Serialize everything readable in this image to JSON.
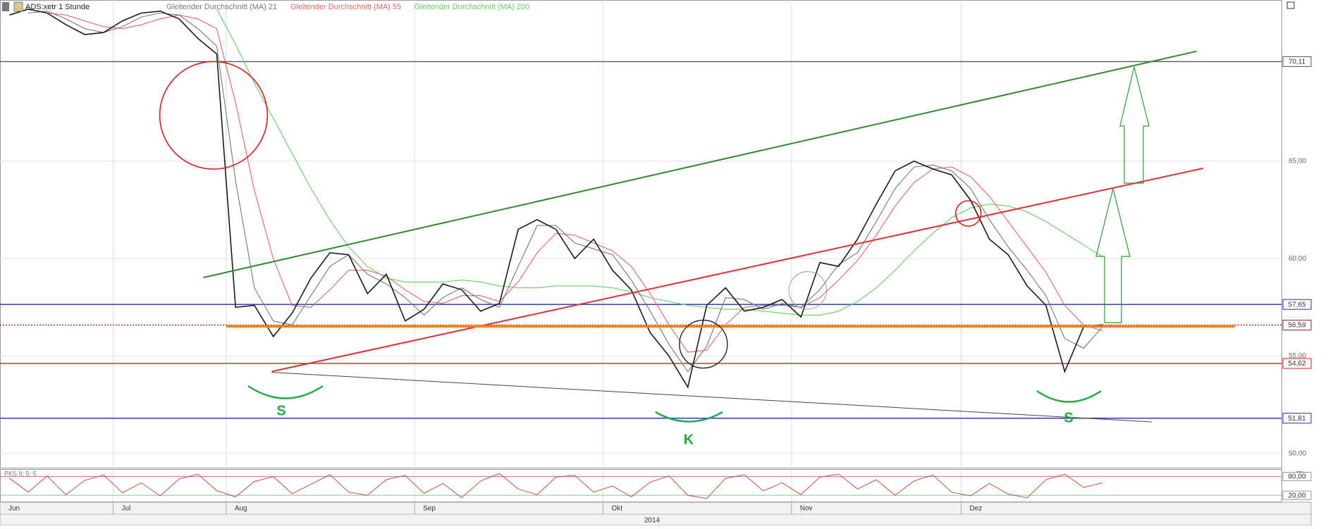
{
  "chart_data": [
    {
      "type": "line",
      "title": "ADS:xetr 1 Stunde",
      "x_label": "2014",
      "categories": [
        "Jun",
        null,
        null,
        null,
        null,
        null,
        "Jul",
        null,
        null,
        null,
        null,
        null,
        "Aug",
        null,
        null,
        null,
        null,
        null,
        null,
        null,
        null,
        null,
        "Sep",
        null,
        null,
        null,
        null,
        null,
        null,
        null,
        null,
        null,
        "Okt",
        null,
        null,
        null,
        null,
        null,
        null,
        null,
        null,
        null,
        "Nov",
        null,
        null,
        null,
        null,
        null,
        null,
        null,
        null,
        "Dez",
        null,
        null,
        null,
        null,
        null,
        null,
        null,
        null,
        null,
        null,
        null,
        null,
        null,
        null,
        null,
        null
      ],
      "series": [
        {
          "name": "ADS:xetr 1 Stunde",
          "color": "#1a1a1a",
          "values": [
            72.5,
            72.8,
            72.6,
            72.0,
            71.5,
            71.6,
            72.2,
            72.6,
            72.7,
            72.3,
            71.3,
            70.5,
            57.5,
            57.6,
            56.0,
            57.2,
            59.0,
            60.3,
            60.2,
            58.2,
            59.2,
            56.8,
            57.4,
            58.7,
            58.4,
            57.3,
            57.7,
            61.5,
            62.0,
            61.5,
            60.0,
            61.0,
            59.4,
            58.4,
            56.2,
            55.0,
            53.4,
            57.6,
            58.5,
            57.3,
            57.5,
            57.9,
            57.0,
            59.8,
            59.6,
            61.0,
            62.8,
            64.5,
            65.0,
            64.6,
            64.3,
            63.0,
            61.0,
            60.2,
            58.6,
            57.6,
            54.2,
            56.5,
            56.6,
            null,
            null,
            null,
            null,
            null,
            null,
            null,
            null,
            null
          ]
        },
        {
          "name": "Gleitender Durchschnitt (MA) 21",
          "color": "#777777",
          "values": [
            null,
            72.6,
            72.7,
            72.3,
            71.8,
            71.6,
            71.9,
            72.4,
            72.6,
            72.5,
            71.8,
            70.9,
            64.0,
            58.5,
            56.8,
            56.6,
            58.1,
            59.6,
            60.2,
            59.2,
            58.7,
            58.0,
            57.1,
            58.0,
            58.5,
            57.9,
            57.5,
            59.6,
            61.7,
            61.7,
            60.8,
            60.5,
            60.2,
            58.9,
            57.3,
            55.6,
            54.2,
            55.5,
            58.0,
            57.9,
            57.4,
            57.7,
            57.5,
            58.4,
            59.7,
            60.3,
            61.9,
            63.6,
            64.7,
            64.8,
            64.5,
            63.6,
            62.0,
            60.6,
            59.4,
            58.1,
            55.9,
            55.4,
            56.5,
            null,
            null,
            null,
            null,
            null,
            null,
            null,
            null,
            null
          ]
        },
        {
          "name": "Gleitender Durchschnitt (MA) 55",
          "color": "#e06666",
          "values": [
            null,
            null,
            72.6,
            72.5,
            72.2,
            71.9,
            71.8,
            72.0,
            72.3,
            72.5,
            72.3,
            71.8,
            68.0,
            63.5,
            60.0,
            57.6,
            57.5,
            58.4,
            59.4,
            59.4,
            59.1,
            58.4,
            57.8,
            57.7,
            58.1,
            58.1,
            57.8,
            58.8,
            60.3,
            61.3,
            61.2,
            60.8,
            60.4,
            59.6,
            58.2,
            56.6,
            55.2,
            55.3,
            56.6,
            57.5,
            57.6,
            57.6,
            57.5,
            58.0,
            58.9,
            59.9,
            61.2,
            62.7,
            63.9,
            64.6,
            64.7,
            64.2,
            63.2,
            61.9,
            60.6,
            59.3,
            57.6,
            56.6,
            56.3,
            null,
            null,
            null,
            null,
            null,
            null,
            null,
            null,
            null
          ]
        },
        {
          "name": "Gleitender Durchschnitt (MA) 200",
          "color": "#66cc66",
          "values": [
            null,
            null,
            null,
            null,
            null,
            null,
            null,
            null,
            null,
            null,
            null,
            72.8,
            71.0,
            69.0,
            67.2,
            65.4,
            63.6,
            62.0,
            60.6,
            59.6,
            59.0,
            58.8,
            58.8,
            58.8,
            58.9,
            58.8,
            58.6,
            58.5,
            58.5,
            58.6,
            58.6,
            58.6,
            58.5,
            58.3,
            58.0,
            57.8,
            57.6,
            57.5,
            57.4,
            57.4,
            57.3,
            57.2,
            57.1,
            57.1,
            57.3,
            57.8,
            58.5,
            59.4,
            60.4,
            61.3,
            62.1,
            62.6,
            62.8,
            62.7,
            62.4,
            61.9,
            61.3,
            60.7,
            60.1,
            null,
            null,
            null,
            null,
            null,
            null,
            null,
            null,
            null
          ]
        }
      ],
      "ylim": [
        49.27,
        73.27
      ],
      "yticks": [
        {
          "value": 50,
          "label": "50,00"
        },
        {
          "value": 55,
          "label": "55,00"
        },
        {
          "value": 60,
          "label": "60,00"
        },
        {
          "value": 65,
          "label": "65,00"
        }
      ],
      "levels": [
        {
          "value": 70.11,
          "label": "70,11",
          "color": "#555555"
        },
        {
          "value": 57.65,
          "label": "57,65",
          "color": "#1f2fb0"
        },
        {
          "value": 56.59,
          "label": "56,59",
          "color": "#8b2a2a"
        },
        {
          "value": 54.62,
          "label": "54,62",
          "color": "#cc2222"
        },
        {
          "value": 51.81,
          "label": "51,81",
          "color": "#1f2fb0"
        }
      ],
      "annotations": [
        "S",
        "K",
        "S"
      ],
      "grid": true
    },
    {
      "type": "line",
      "title": "PKS 9; 5; 5",
      "color": "#c0504d",
      "values": [
        75,
        30,
        82,
        22,
        68,
        85,
        28,
        60,
        18,
        72,
        88,
        35,
        15,
        64,
        80,
        25,
        55,
        86,
        30,
        20,
        70,
        84,
        26,
        58,
        12,
        66,
        90,
        40,
        22,
        78,
        84,
        30,
        50,
        15,
        62,
        82,
        20,
        10,
        74,
        86,
        34,
        60,
        22,
        78,
        88,
        40,
        70,
        20,
        66,
        85,
        30,
        18,
        58,
        24,
        12,
        70,
        88,
        45,
        60,
        null,
        null,
        null,
        null,
        null,
        null,
        null,
        null,
        null
      ],
      "ylim": [
        0,
        100
      ],
      "yticks": [
        {
          "value": 20,
          "label": "20,00"
        },
        {
          "value": 80,
          "label": "80,00"
        }
      ]
    }
  ]
}
